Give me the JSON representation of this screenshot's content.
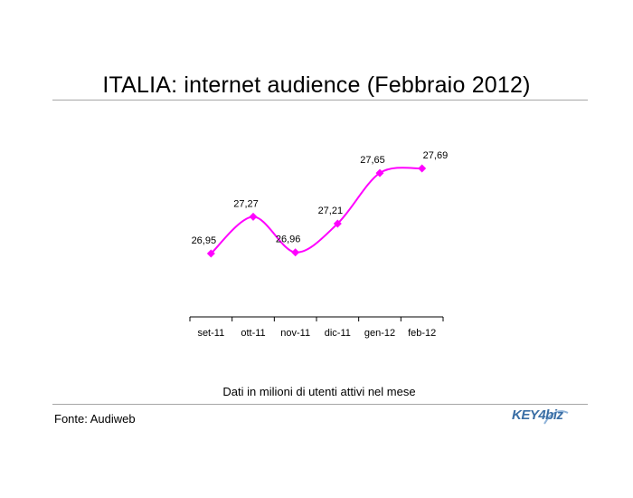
{
  "title": "ITALIA: internet audience (Febbraio 2012)",
  "note": "Dati in milioni di utenti attivi nel mese",
  "source": "Fonte: Audiweb",
  "logo": {
    "text": "KEY4biz",
    "color": "#3a6ea5"
  },
  "chart_data": {
    "type": "line",
    "categories": [
      "set-11",
      "ott-11",
      "nov-11",
      "dic-11",
      "gen-12",
      "feb-12"
    ],
    "series": [
      {
        "values": [
          26.95,
          27.27,
          26.96,
          27.21,
          27.65,
          27.69
        ],
        "labels": [
          "26,95",
          "27,27",
          "26,96",
          "27,21",
          "27,65",
          "27,69"
        ],
        "color": "#ff00ff",
        "marker": "diamond",
        "smooth": true
      }
    ],
    "grid": false,
    "legend": "none"
  }
}
